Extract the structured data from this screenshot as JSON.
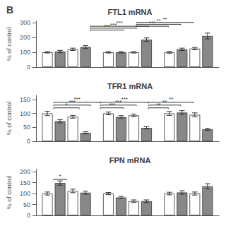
{
  "chart_data": [
    {
      "type": "bar",
      "title": "FTL1 mRNA",
      "ylabel": "% of control",
      "ylim": [
        0,
        310
      ],
      "yticks": [
        0,
        100,
        200,
        300
      ],
      "grid": false,
      "tick_labels": "y",
      "categories": [
        null,
        null,
        null
      ],
      "edge_color": "#333333",
      "series": [
        {
          "color": "#ffffff",
          "values": [
            100,
            100,
            100
          ],
          "errors": [
            5,
            5,
            6
          ]
        },
        {
          "color": "#888888",
          "values": [
            105,
            100,
            120
          ],
          "errors": [
            8,
            5,
            8
          ]
        },
        {
          "color": "#ffffff",
          "values": [
            120,
            100,
            125
          ],
          "errors": [
            8,
            5,
            8
          ]
        },
        {
          "color": "#888888",
          "values": [
            135,
            185,
            210
          ],
          "errors": [
            10,
            12,
            20
          ]
        }
      ],
      "annotations": [
        {
          "x1": 3.5,
          "x2": 6.5,
          "y": 250,
          "label": "***"
        },
        {
          "x1": 3.5,
          "x2": 7.5,
          "y": 263,
          "label": "***"
        },
        {
          "x1": 3.5,
          "x2": 8.5,
          "y": 276,
          "label": "***"
        },
        {
          "x1": 7.5,
          "x2": 10.5,
          "y": 276,
          "label": "***"
        },
        {
          "x1": 7.5,
          "x2": 11.5,
          "y": 289,
          "label": "**"
        },
        {
          "x1": 7.5,
          "x2": 12.5,
          "y": 302,
          "label": "**"
        }
      ]
    },
    {
      "type": "bar",
      "title": "TFR1 mRNA",
      "ylabel": "% of control",
      "ylim": [
        0,
        165
      ],
      "yticks": [
        0,
        50,
        100,
        150
      ],
      "grid": false,
      "tick_labels": "y",
      "categories": [
        null,
        null,
        null
      ],
      "edge_color": "#333333",
      "series": [
        {
          "color": "#ffffff",
          "values": [
            100,
            100,
            100
          ],
          "errors": [
            8,
            5,
            7
          ]
        },
        {
          "color": "#888888",
          "values": [
            72,
            87,
            103
          ],
          "errors": [
            6,
            5,
            7
          ]
        },
        {
          "color": "#ffffff",
          "values": [
            88,
            93,
            95
          ],
          "errors": [
            5,
            5,
            7
          ]
        },
        {
          "color": "#888888",
          "values": [
            30,
            48,
            43
          ],
          "errors": [
            4,
            4,
            4
          ]
        }
      ],
      "annotations": [
        {
          "x1": 0.5,
          "x2": 3.5,
          "y": 130,
          "label": "***"
        },
        {
          "x1": 0.5,
          "x2": 2.5,
          "y": 120,
          "label": "*"
        },
        {
          "x1": 0.5,
          "x2": 4.5,
          "y": 140,
          "label": "***"
        },
        {
          "x1": 4.5,
          "x2": 7.5,
          "y": 130,
          "label": "***"
        },
        {
          "x1": 4.5,
          "x2": 6.5,
          "y": 120,
          "label": "***"
        },
        {
          "x1": 4.5,
          "x2": 8.5,
          "y": 140,
          "label": "***"
        },
        {
          "x1": 8.5,
          "x2": 11.5,
          "y": 130,
          "label": "**"
        },
        {
          "x1": 8.5,
          "x2": 10.5,
          "y": 120,
          "label": "**"
        },
        {
          "x1": 8.5,
          "x2": 12.5,
          "y": 140,
          "label": "**"
        }
      ]
    },
    {
      "type": "bar",
      "title": "FPN mRNA",
      "ylabel": "% of control",
      "ylim": [
        0,
        210
      ],
      "yticks": [
        0,
        50,
        100,
        150,
        200
      ],
      "grid": false,
      "tick_labels": "y",
      "categories": [
        null,
        null,
        null
      ],
      "edge_color": "#333333",
      "series": [
        {
          "color": "#ffffff",
          "values": [
            100,
            100,
            100
          ],
          "errors": [
            7,
            5,
            6
          ]
        },
        {
          "color": "#888888",
          "values": [
            148,
            82,
            105
          ],
          "errors": [
            10,
            5,
            8
          ]
        },
        {
          "color": "#ffffff",
          "values": [
            112,
            65,
            100
          ],
          "errors": [
            8,
            6,
            7
          ]
        },
        {
          "color": "#888888",
          "values": [
            104,
            65,
            133
          ],
          "errors": [
            7,
            6,
            12
          ]
        }
      ],
      "annotations": [
        {
          "x1": 0.5,
          "x2": 1.5,
          "y": 165,
          "label": "*"
        }
      ]
    }
  ],
  "annotations": [
    {
      "label": "B"
    }
  ]
}
